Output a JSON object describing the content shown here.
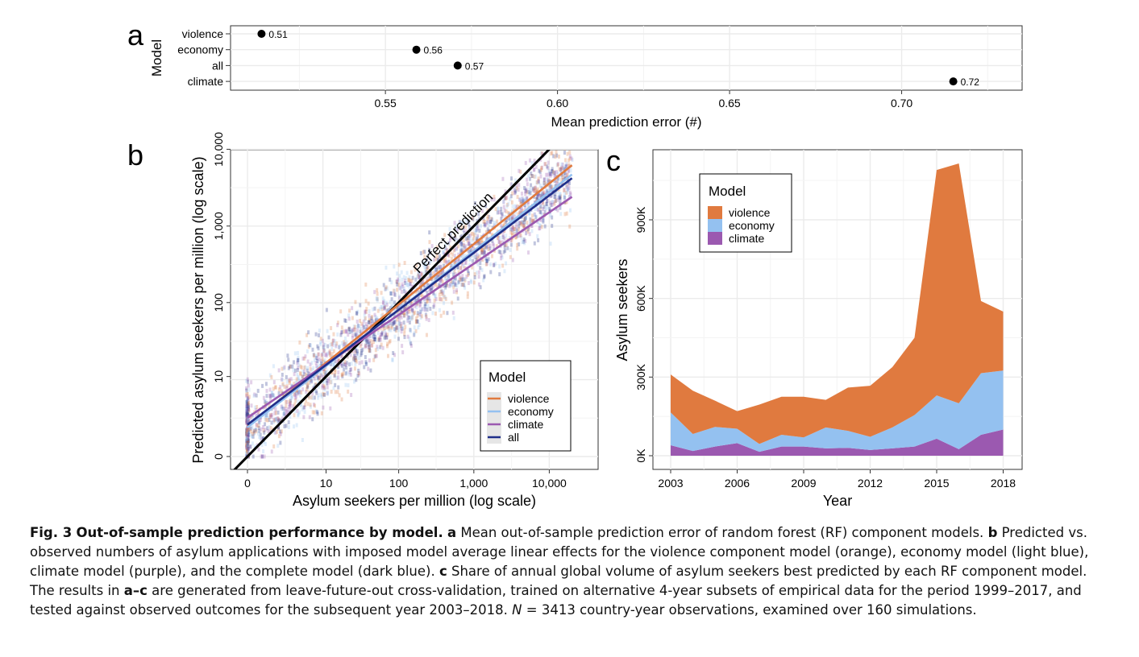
{
  "caption": {
    "fig_label": "Fig. 3",
    "title": "Out-of-sample prediction performance by model.",
    "a_label": "a",
    "a_text": "Mean out-of-sample prediction error of random forest (RF) component models.",
    "b_label": "b",
    "b_text": "Predicted vs. observed numbers of asylum applications with imposed model average linear effects for the violence component model (orange), economy model (light blue), climate model (purple), and the complete model (dark blue).",
    "c_label": "c",
    "c_text": "Share of annual global volume of asylum seekers best predicted by each RF component model. The results in",
    "c_range": "a–c",
    "c_text2": "are generated from leave-future-out cross-validation, trained on alternative 4-year subsets of empirical data for the period 1999–2017, and tested against observed outcomes for the subsequent year 2003–2018.",
    "n_var": "N",
    "n_text": " = 3413 country-year observations, examined over 160 simulations."
  },
  "colors": {
    "violence": "#E07A3F",
    "economy": "#94C1F0",
    "climate": "#9B59B0",
    "all": "#1F2F8A",
    "perfect": "#000000",
    "grid": "#EBEBEB"
  },
  "chart_data": [
    {
      "panel": "a",
      "type": "scatter",
      "xlabel": "Mean prediction error (#)",
      "ylabel": "Model",
      "xlim": [
        0.505,
        0.735
      ],
      "xticks": [
        0.55,
        0.6,
        0.65,
        0.7
      ],
      "xtick_labels": [
        "0.55",
        "0.60",
        "0.65",
        "0.70"
      ],
      "grid": true,
      "points": [
        {
          "model": "violence",
          "value": 0.514,
          "label": "0.51"
        },
        {
          "model": "economy",
          "value": 0.559,
          "label": "0.56"
        },
        {
          "model": "all",
          "value": 0.571,
          "label": "0.57"
        },
        {
          "model": "climate",
          "value": 0.715,
          "label": "0.72"
        }
      ]
    },
    {
      "panel": "b",
      "type": "scatter",
      "xlabel": "Asylum seekers per million (log scale)",
      "ylabel": "Predicted asylum seekers per million (log scale)",
      "scale": "log1p",
      "xlim": [
        0,
        30000
      ],
      "ylim": [
        0,
        10000
      ],
      "xticks": [
        0,
        10,
        100,
        1000,
        10000
      ],
      "xtick_labels": [
        "0",
        "10",
        "100",
        "1,000",
        "10,000"
      ],
      "yticks": [
        0,
        10,
        100,
        1000,
        10000
      ],
      "ytick_labels": [
        "0",
        "10",
        "100",
        "1,000",
        "10,000"
      ],
      "grid": true,
      "annotation": "Perfect prediction",
      "legend": {
        "title": "Model",
        "position": "bottom-right",
        "entries": [
          "violence",
          "economy",
          "climate",
          "all"
        ]
      },
      "fit_lines": [
        {
          "name": "violence",
          "x": [
            0,
            20000
          ],
          "y": [
            1.5,
            6200
          ]
        },
        {
          "name": "economy",
          "x": [
            0,
            20000
          ],
          "y": [
            1.4,
            4700
          ]
        },
        {
          "name": "climate",
          "x": [
            0,
            20000
          ],
          "y": [
            2.2,
            2400
          ]
        },
        {
          "name": "all",
          "x": [
            0,
            20000
          ],
          "y": [
            1.6,
            4200
          ]
        }
      ],
      "perfect_line": {
        "x": [
          0,
          10000
        ],
        "y": [
          0,
          10000
        ]
      },
      "point_cloud": {
        "count": 3413,
        "note": "observations scattered around fit lines"
      }
    },
    {
      "panel": "c",
      "type": "area",
      "xlabel": "Year",
      "ylabel": "Asylum seekers",
      "xlim": [
        2002.6,
        2018.4
      ],
      "ylim": [
        0,
        1150000
      ],
      "xticks": [
        2003,
        2006,
        2009,
        2012,
        2015,
        2018
      ],
      "xtick_labels": [
        "2003",
        "2006",
        "2009",
        "2012",
        "2015",
        "2018"
      ],
      "yticks": [
        0,
        300000,
        600000,
        900000
      ],
      "ytick_labels": [
        "0K",
        "300K",
        "600K",
        "900K"
      ],
      "grid": true,
      "legend": {
        "title": "Model",
        "position": "top-left",
        "entries": [
          "violence",
          "economy",
          "climate"
        ]
      },
      "x": [
        2003,
        2004,
        2005,
        2006,
        2007,
        2008,
        2009,
        2010,
        2011,
        2012,
        2013,
        2014,
        2015,
        2016,
        2017,
        2018
      ],
      "series": [
        {
          "name": "climate",
          "values": [
            40000,
            18000,
            35000,
            48000,
            15000,
            35000,
            35000,
            28000,
            30000,
            22000,
            28000,
            35000,
            65000,
            25000,
            80000,
            100000
          ]
        },
        {
          "name": "economy",
          "values": [
            125000,
            65000,
            75000,
            55000,
            30000,
            45000,
            35000,
            80000,
            65000,
            50000,
            80000,
            120000,
            165000,
            175000,
            235000,
            225000
          ]
        },
        {
          "name": "violence",
          "values": [
            145000,
            165000,
            100000,
            67000,
            150000,
            145000,
            155000,
            105000,
            165000,
            195000,
            230000,
            295000,
            860000,
            915000,
            275000,
            225000
          ]
        }
      ]
    }
  ]
}
